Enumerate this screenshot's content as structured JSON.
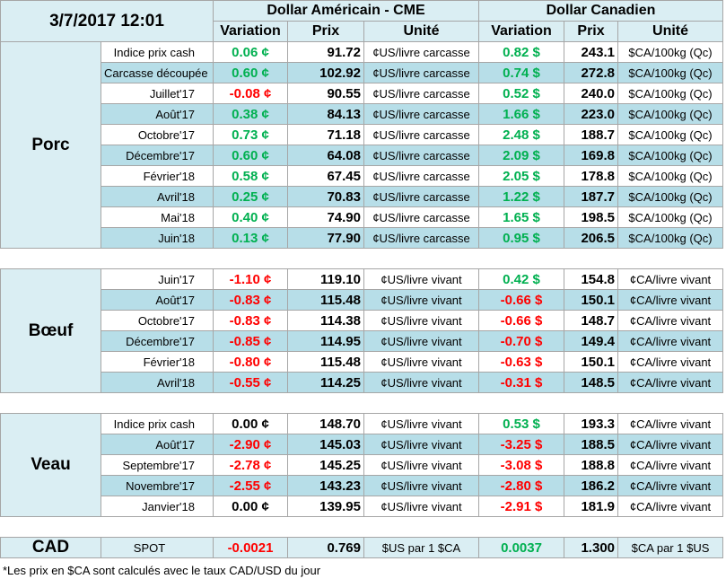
{
  "header": {
    "timestamp": "3/7/2017 12:01",
    "usd_title": "Dollar Américain - CME",
    "cad_title": "Dollar Canadien",
    "columns": [
      "Variation",
      "Prix",
      "Unité",
      "Variation",
      "Prix",
      "Unité"
    ]
  },
  "groups": [
    {
      "name": "Porc",
      "rows": [
        [
          "Indice prix cash",
          "0.06 ¢",
          "91.72",
          "¢US/livre carcasse",
          "0.82 $",
          "243.1",
          "$CA/100kg (Qc)"
        ],
        [
          "Carcasse découpée",
          "0.60 ¢",
          "102.92",
          "¢US/livre carcasse",
          "0.74 $",
          "272.8",
          "$CA/100kg (Qc)"
        ],
        [
          "Juillet'17",
          "-0.08 ¢",
          "90.55",
          "¢US/livre carcasse",
          "0.52 $",
          "240.0",
          "$CA/100kg (Qc)"
        ],
        [
          "Août'17",
          "0.38 ¢",
          "84.13",
          "¢US/livre carcasse",
          "1.66 $",
          "223.0",
          "$CA/100kg (Qc)"
        ],
        [
          "Octobre'17",
          "0.73 ¢",
          "71.18",
          "¢US/livre carcasse",
          "2.48 $",
          "188.7",
          "$CA/100kg (Qc)"
        ],
        [
          "Décembre'17",
          "0.60 ¢",
          "64.08",
          "¢US/livre carcasse",
          "2.09 $",
          "169.8",
          "$CA/100kg (Qc)"
        ],
        [
          "Février'18",
          "0.58 ¢",
          "67.45",
          "¢US/livre carcasse",
          "2.05 $",
          "178.8",
          "$CA/100kg (Qc)"
        ],
        [
          "Avril'18",
          "0.25 ¢",
          "70.83",
          "¢US/livre carcasse",
          "1.22 $",
          "187.7",
          "$CA/100kg (Qc)"
        ],
        [
          "Mai'18",
          "0.40 ¢",
          "74.90",
          "¢US/livre carcasse",
          "1.65 $",
          "198.5",
          "$CA/100kg (Qc)"
        ],
        [
          "Juin'18",
          "0.13 ¢",
          "77.90",
          "¢US/livre carcasse",
          "0.95 $",
          "206.5",
          "$CA/100kg (Qc)"
        ]
      ]
    },
    {
      "name": "Bœuf",
      "rows": [
        [
          "Juin'17",
          "-1.10 ¢",
          "119.10",
          "¢US/livre vivant",
          "0.42 $",
          "154.8",
          "¢CA/livre vivant"
        ],
        [
          "Août'17",
          "-0.83 ¢",
          "115.48",
          "¢US/livre vivant",
          "-0.66 $",
          "150.1",
          "¢CA/livre vivant"
        ],
        [
          "Octobre'17",
          "-0.83 ¢",
          "114.38",
          "¢US/livre vivant",
          "-0.66 $",
          "148.7",
          "¢CA/livre vivant"
        ],
        [
          "Décembre'17",
          "-0.85 ¢",
          "114.95",
          "¢US/livre vivant",
          "-0.70 $",
          "149.4",
          "¢CA/livre vivant"
        ],
        [
          "Février'18",
          "-0.80 ¢",
          "115.48",
          "¢US/livre vivant",
          "-0.63 $",
          "150.1",
          "¢CA/livre vivant"
        ],
        [
          "Avril'18",
          "-0.55 ¢",
          "114.25",
          "¢US/livre vivant",
          "-0.31 $",
          "148.5",
          "¢CA/livre vivant"
        ]
      ]
    },
    {
      "name": "Veau",
      "rows": [
        [
          "Indice prix cash",
          "0.00 ¢",
          "148.70",
          "¢US/livre vivant",
          "0.53 $",
          "193.3",
          "¢CA/livre vivant"
        ],
        [
          "Août'17",
          "-2.90 ¢",
          "145.03",
          "¢US/livre vivant",
          "-3.25 $",
          "188.5",
          "¢CA/livre vivant"
        ],
        [
          "Septembre'17",
          "-2.78 ¢",
          "145.25",
          "¢US/livre vivant",
          "-3.08 $",
          "188.8",
          "¢CA/livre vivant"
        ],
        [
          "Novembre'17",
          "-2.55 ¢",
          "143.23",
          "¢US/livre vivant",
          "-2.80 $",
          "186.2",
          "¢CA/livre vivant"
        ],
        [
          "Janvier'18",
          "0.00 ¢",
          "139.95",
          "¢US/livre vivant",
          "-2.91 $",
          "181.9",
          "¢CA/livre vivant"
        ]
      ]
    },
    {
      "name": "CAD",
      "rows": [
        [
          "SPOT",
          "-0.0021",
          "0.769",
          "$US par 1 $CA",
          "0.0037",
          "1.300",
          "$CA par 1 $US"
        ]
      ]
    }
  ],
  "footnote": "*Les  prix en $CA sont calculés avec le taux CAD/USD du jour"
}
